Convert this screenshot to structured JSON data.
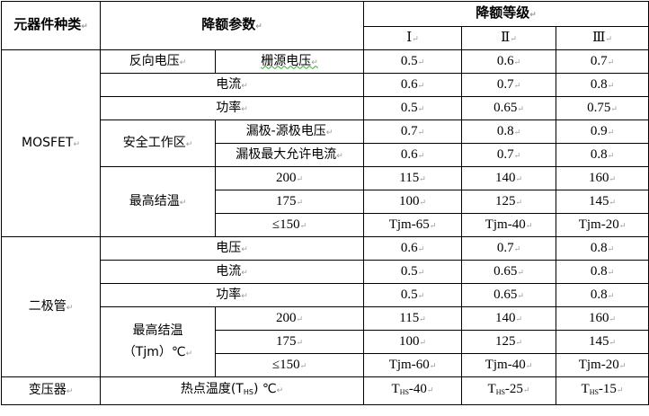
{
  "header": {
    "component_type": "元器件种类",
    "parameter": "降额参数",
    "level": "降额等级",
    "levels": [
      "Ⅰ",
      "Ⅱ",
      "Ⅲ"
    ]
  },
  "mosfet": {
    "name": "MOSFET",
    "reverse_voltage": "反向电压",
    "gate_source_voltage": {
      "label": "栅源电压",
      "values": [
        "0.5",
        "0.6",
        "0.7"
      ]
    },
    "current": {
      "label": "电流",
      "values": [
        "0.6",
        "0.7",
        "0.8"
      ]
    },
    "power": {
      "label": "功率",
      "values": [
        "0.5",
        "0.65",
        "0.75"
      ]
    },
    "soa": "安全工作区",
    "drain_source_voltage": {
      "label": "漏极-源极电压",
      "values": [
        "0.7",
        "0.8",
        "0.9"
      ]
    },
    "drain_max_current": {
      "label": "漏极最大允许电流",
      "values": [
        "0.6",
        "0.7",
        "0.8"
      ]
    },
    "junction_temp": "最高结温",
    "jt_rows": [
      {
        "label": "200",
        "values": [
          "115",
          "140",
          "160"
        ]
      },
      {
        "label": "175",
        "values": [
          "100",
          "125",
          "145"
        ]
      },
      {
        "label": "≤150",
        "values": [
          "Tjm-65",
          "Tjm-40",
          "Tjm-20"
        ]
      }
    ]
  },
  "diode": {
    "name": "二极管",
    "voltage": {
      "label": "电压",
      "values": [
        "0.6",
        "0.7",
        "0.8"
      ]
    },
    "current": {
      "label": "电流",
      "values": [
        "0.5",
        "0.65",
        "0.8"
      ]
    },
    "power": {
      "label": "功率",
      "values": [
        "0.5",
        "0.65",
        "0.8"
      ]
    },
    "junction_temp": "最高结温",
    "junction_temp_unit": "（Tjm）℃",
    "jt_rows": [
      {
        "label": "200",
        "values": [
          "115",
          "140",
          "160"
        ]
      },
      {
        "label": "175",
        "values": [
          "100",
          "125",
          "145"
        ]
      },
      {
        "label": "≤150",
        "values": [
          "Tjm-60",
          "Tjm-40",
          "Tjm-20"
        ]
      }
    ]
  },
  "transformer": {
    "name": "变压器",
    "hotspot_label": "热点温度(T",
    "hotspot_sub": "HS",
    "hotspot_tail": ") ℃",
    "base": "T",
    "sub": "HS",
    "values": [
      "-40",
      "-25",
      "-15"
    ]
  }
}
